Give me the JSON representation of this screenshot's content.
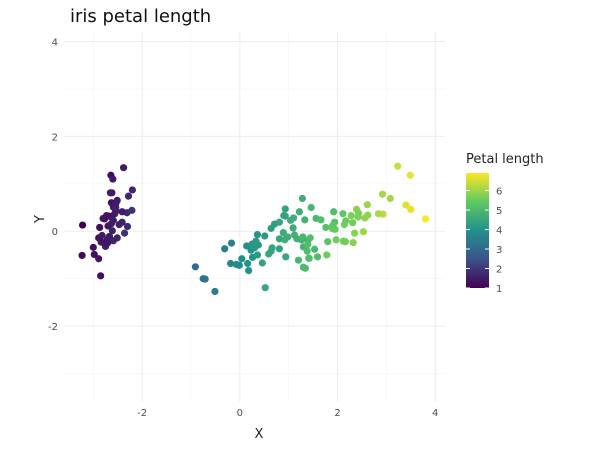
{
  "chart_data": {
    "type": "scatter",
    "title": "iris petal length",
    "xlabel": "X",
    "ylabel": "Y",
    "xlim": [
      -3.6,
      4.2
    ],
    "ylim": [
      -3.6,
      4.2
    ],
    "xticks": [
      -2,
      0,
      2,
      4
    ],
    "yticks": [
      -2,
      0,
      2,
      4
    ],
    "grid": true,
    "legend": {
      "title": "Petal length",
      "position": "right",
      "range": [
        1,
        6.9
      ],
      "ticks": [
        1,
        2,
        3,
        4,
        5,
        6
      ],
      "colors": [
        "#440154",
        "#3b528b",
        "#21918c",
        "#5ec962",
        "#fde725"
      ]
    },
    "points": [
      {
        "x": -2.68,
        "y": 0.32,
        "c": 1.4
      },
      {
        "x": -2.71,
        "y": -0.18,
        "c": 1.4
      },
      {
        "x": -2.89,
        "y": -0.14,
        "c": 1.3
      },
      {
        "x": -2.75,
        "y": -0.32,
        "c": 1.5
      },
      {
        "x": -2.73,
        "y": 0.33,
        "c": 1.4
      },
      {
        "x": -2.28,
        "y": 0.74,
        "c": 1.7
      },
      {
        "x": -2.82,
        "y": -0.09,
        "c": 1.4
      },
      {
        "x": -2.63,
        "y": 0.16,
        "c": 1.5
      },
      {
        "x": -2.89,
        "y": -0.58,
        "c": 1.4
      },
      {
        "x": -2.67,
        "y": -0.11,
        "c": 1.5
      },
      {
        "x": -2.51,
        "y": 0.65,
        "c": 1.5
      },
      {
        "x": -2.61,
        "y": 0.01,
        "c": 1.6
      },
      {
        "x": -2.79,
        "y": -0.24,
        "c": 1.4
      },
      {
        "x": -3.23,
        "y": -0.51,
        "c": 1.1
      },
      {
        "x": -2.64,
        "y": 1.18,
        "c": 1.2
      },
      {
        "x": -2.38,
        "y": 1.34,
        "c": 1.5
      },
      {
        "x": -2.62,
        "y": 0.81,
        "c": 1.3
      },
      {
        "x": -2.65,
        "y": 0.31,
        "c": 1.4
      },
      {
        "x": -2.2,
        "y": 0.87,
        "c": 1.7
      },
      {
        "x": -2.59,
        "y": 0.51,
        "c": 1.5
      },
      {
        "x": -2.31,
        "y": 0.39,
        "c": 1.7
      },
      {
        "x": -2.54,
        "y": 0.43,
        "c": 1.5
      },
      {
        "x": -3.22,
        "y": 0.13,
        "c": 1.0
      },
      {
        "x": -2.3,
        "y": 0.1,
        "c": 1.7
      },
      {
        "x": -2.36,
        "y": -0.04,
        "c": 1.9
      },
      {
        "x": -2.51,
        "y": -0.14,
        "c": 1.6
      },
      {
        "x": -2.47,
        "y": 0.14,
        "c": 1.6
      },
      {
        "x": -2.56,
        "y": 0.37,
        "c": 1.5
      },
      {
        "x": -2.64,
        "y": 0.31,
        "c": 1.4
      },
      {
        "x": -2.63,
        "y": -0.19,
        "c": 1.6
      },
      {
        "x": -2.59,
        "y": -0.2,
        "c": 1.6
      },
      {
        "x": -2.41,
        "y": 0.41,
        "c": 1.5
      },
      {
        "x": -2.65,
        "y": 0.81,
        "c": 1.5
      },
      {
        "x": -2.6,
        "y": 1.1,
        "c": 1.4
      },
      {
        "x": -2.67,
        "y": -0.11,
        "c": 1.5
      },
      {
        "x": -2.87,
        "y": 0.08,
        "c": 1.2
      },
      {
        "x": -2.63,
        "y": 0.6,
        "c": 1.3
      },
      {
        "x": -2.8,
        "y": 0.27,
        "c": 1.4
      },
      {
        "x": -2.98,
        "y": -0.49,
        "c": 1.3
      },
      {
        "x": -2.59,
        "y": 0.23,
        "c": 1.5
      },
      {
        "x": -2.77,
        "y": 0.26,
        "c": 1.3
      },
      {
        "x": -2.85,
        "y": -0.94,
        "c": 1.3
      },
      {
        "x": -3.0,
        "y": -0.34,
        "c": 1.3
      },
      {
        "x": -2.41,
        "y": 0.19,
        "c": 1.6
      },
      {
        "x": -2.21,
        "y": 0.44,
        "c": 1.9
      },
      {
        "x": -2.71,
        "y": -0.25,
        "c": 1.4
      },
      {
        "x": -2.54,
        "y": 0.5,
        "c": 1.6
      },
      {
        "x": -2.84,
        "y": -0.23,
        "c": 1.4
      },
      {
        "x": -2.54,
        "y": 0.58,
        "c": 1.5
      },
      {
        "x": -2.7,
        "y": 0.11,
        "c": 1.4
      },
      {
        "x": 1.28,
        "y": 0.69,
        "c": 4.7
      },
      {
        "x": 0.93,
        "y": 0.32,
        "c": 4.5
      },
      {
        "x": 1.46,
        "y": 0.5,
        "c": 4.9
      },
      {
        "x": 0.18,
        "y": -0.83,
        "c": 4.0
      },
      {
        "x": 1.09,
        "y": 0.07,
        "c": 4.6
      },
      {
        "x": 0.64,
        "y": -0.42,
        "c": 4.5
      },
      {
        "x": 1.1,
        "y": 0.28,
        "c": 4.7
      },
      {
        "x": -0.75,
        "y": -1.0,
        "c": 3.3
      },
      {
        "x": 1.04,
        "y": 0.23,
        "c": 4.6
      },
      {
        "x": -0.01,
        "y": -0.72,
        "c": 3.9
      },
      {
        "x": -0.51,
        "y": -1.27,
        "c": 3.5
      },
      {
        "x": 0.51,
        "y": -0.1,
        "c": 4.2
      },
      {
        "x": 0.26,
        "y": -0.55,
        "c": 4.0
      },
      {
        "x": 0.98,
        "y": -0.12,
        "c": 4.7
      },
      {
        "x": -0.17,
        "y": -0.25,
        "c": 3.6
      },
      {
        "x": 0.93,
        "y": 0.47,
        "c": 4.4
      },
      {
        "x": 0.66,
        "y": -0.35,
        "c": 4.5
      },
      {
        "x": 0.23,
        "y": -0.33,
        "c": 4.1
      },
      {
        "x": 0.94,
        "y": -0.54,
        "c": 4.5
      },
      {
        "x": 0.04,
        "y": -0.58,
        "c": 3.9
      },
      {
        "x": 1.12,
        "y": -0.08,
        "c": 4.8
      },
      {
        "x": 0.36,
        "y": -0.07,
        "c": 4.0
      },
      {
        "x": 1.3,
        "y": -0.33,
        "c": 4.9
      },
      {
        "x": 0.92,
        "y": -0.18,
        "c": 4.7
      },
      {
        "x": 0.71,
        "y": 0.15,
        "c": 4.3
      },
      {
        "x": 0.9,
        "y": 0.33,
        "c": 4.4
      },
      {
        "x": 1.33,
        "y": 0.24,
        "c": 4.8
      },
      {
        "x": 1.56,
        "y": 0.27,
        "c": 5.0
      },
      {
        "x": 0.81,
        "y": -0.16,
        "c": 4.5
      },
      {
        "x": -0.31,
        "y": -0.37,
        "c": 3.5
      },
      {
        "x": -0.07,
        "y": -0.7,
        "c": 3.8
      },
      {
        "x": -0.19,
        "y": -0.68,
        "c": 3.7
      },
      {
        "x": 0.14,
        "y": -0.31,
        "c": 3.9
      },
      {
        "x": 1.38,
        "y": -0.42,
        "c": 5.1
      },
      {
        "x": 0.59,
        "y": -0.48,
        "c": 4.5
      },
      {
        "x": 0.81,
        "y": 0.19,
        "c": 4.5
      },
      {
        "x": 1.22,
        "y": 0.41,
        "c": 4.7
      },
      {
        "x": 0.81,
        "y": -0.37,
        "c": 4.4
      },
      {
        "x": 0.25,
        "y": -0.27,
        "c": 4.1
      },
      {
        "x": 0.16,
        "y": -0.68,
        "c": 4.0
      },
      {
        "x": 0.46,
        "y": -0.67,
        "c": 4.4
      },
      {
        "x": 0.89,
        "y": -0.03,
        "c": 4.6
      },
      {
        "x": 0.23,
        "y": -0.4,
        "c": 4.0
      },
      {
        "x": -0.71,
        "y": -1.01,
        "c": 3.3
      },
      {
        "x": 0.36,
        "y": -0.5,
        "c": 4.2
      },
      {
        "x": 0.33,
        "y": -0.21,
        "c": 4.2
      },
      {
        "x": 0.38,
        "y": -0.29,
        "c": 4.2
      },
      {
        "x": 0.64,
        "y": 0.06,
        "c": 4.3
      },
      {
        "x": -0.91,
        "y": -0.75,
        "c": 3.0
      },
      {
        "x": 0.3,
        "y": -0.35,
        "c": 4.1
      },
      {
        "x": 2.53,
        "y": -0.01,
        "c": 6.0
      },
      {
        "x": 1.41,
        "y": -0.57,
        "c": 5.1
      },
      {
        "x": 2.62,
        "y": 0.34,
        "c": 5.9
      },
      {
        "x": 1.97,
        "y": -0.18,
        "c": 5.6
      },
      {
        "x": 2.35,
        "y": -0.04,
        "c": 5.8
      },
      {
        "x": 3.4,
        "y": 0.55,
        "c": 6.6
      },
      {
        "x": 0.52,
        "y": -1.19,
        "c": 4.5
      },
      {
        "x": 2.93,
        "y": 0.36,
        "c": 6.3
      },
      {
        "x": 2.32,
        "y": -0.24,
        "c": 5.8
      },
      {
        "x": 2.92,
        "y": 0.78,
        "c": 6.1
      },
      {
        "x": 1.66,
        "y": 0.24,
        "c": 5.1
      },
      {
        "x": 1.8,
        "y": -0.22,
        "c": 5.3
      },
      {
        "x": 2.17,
        "y": 0.22,
        "c": 5.5
      },
      {
        "x": 1.34,
        "y": -0.78,
        "c": 5.0
      },
      {
        "x": 1.59,
        "y": -0.54,
        "c": 5.1
      },
      {
        "x": 1.9,
        "y": 0.12,
        "c": 5.3
      },
      {
        "x": 1.95,
        "y": 0.04,
        "c": 5.5
      },
      {
        "x": 3.49,
        "y": 1.18,
        "c": 6.7
      },
      {
        "x": 3.8,
        "y": 0.26,
        "c": 6.9
      },
      {
        "x": 1.3,
        "y": -0.76,
        "c": 5.0
      },
      {
        "x": 2.43,
        "y": 0.38,
        "c": 5.7
      },
      {
        "x": 1.2,
        "y": -0.61,
        "c": 4.9
      },
      {
        "x": 3.5,
        "y": 0.46,
        "c": 6.7
      },
      {
        "x": 1.39,
        "y": -0.2,
        "c": 4.9
      },
      {
        "x": 2.28,
        "y": 0.33,
        "c": 5.7
      },
      {
        "x": 2.61,
        "y": 0.56,
        "c": 6.0
      },
      {
        "x": 1.26,
        "y": -0.18,
        "c": 4.8
      },
      {
        "x": 1.29,
        "y": -0.12,
        "c": 4.9
      },
      {
        "x": 2.12,
        "y": -0.21,
        "c": 5.6
      },
      {
        "x": 2.39,
        "y": 0.46,
        "c": 5.8
      },
      {
        "x": 2.84,
        "y": 0.37,
        "c": 6.1
      },
      {
        "x": 3.23,
        "y": 1.37,
        "c": 6.4
      },
      {
        "x": 2.16,
        "y": -0.22,
        "c": 5.6
      },
      {
        "x": 1.44,
        "y": -0.14,
        "c": 5.1
      },
      {
        "x": 1.78,
        "y": -0.5,
        "c": 5.6
      },
      {
        "x": 3.08,
        "y": 0.69,
        "c": 6.1
      },
      {
        "x": 2.14,
        "y": 0.14,
        "c": 5.6
      },
      {
        "x": 1.9,
        "y": 0.05,
        "c": 5.5
      },
      {
        "x": 1.17,
        "y": -0.16,
        "c": 4.8
      },
      {
        "x": 2.11,
        "y": 0.37,
        "c": 5.4
      },
      {
        "x": 2.31,
        "y": 0.18,
        "c": 5.6
      },
      {
        "x": 1.92,
        "y": 0.41,
        "c": 5.1
      },
      {
        "x": 1.42,
        "y": -0.57,
        "c": 5.1
      },
      {
        "x": 2.56,
        "y": 0.28,
        "c": 5.9
      },
      {
        "x": 2.42,
        "y": 0.3,
        "c": 5.7
      },
      {
        "x": 1.94,
        "y": 0.19,
        "c": 5.2
      },
      {
        "x": 1.53,
        "y": -0.38,
        "c": 5.0
      },
      {
        "x": 1.76,
        "y": 0.08,
        "c": 5.2
      },
      {
        "x": 1.9,
        "y": 0.12,
        "c": 5.4
      },
      {
        "x": 1.39,
        "y": -0.28,
        "c": 5.1
      }
    ]
  }
}
